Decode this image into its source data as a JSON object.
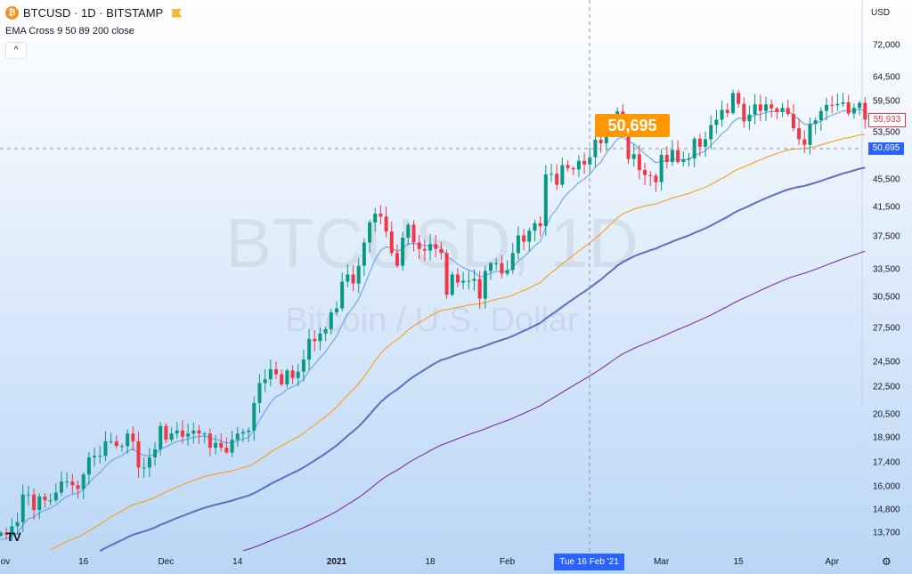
{
  "header": {
    "symbol_title": "BTCUSD · 1D · BITSTAMP",
    "indicator": "EMA Cross 9 50 89 200 close",
    "currency": "USD",
    "collapse_icon": "chevron-up-icon"
  },
  "watermark": {
    "line1": "BTCUSD, 1D",
    "line2": "Bitcoin / U.S. Dollar"
  },
  "tooltip": {
    "value": "50,695"
  },
  "price_tags": {
    "last": "55,933",
    "crosshair": "50,695"
  },
  "crosshair_date": "Tue 16 Feb '21",
  "logo_text": "TV",
  "colors": {
    "up": "#089981",
    "down": "#f23645",
    "ema9": "#5b9cf6",
    "ema50": "#ff9800",
    "ema89": "#5d6fc0",
    "ema200": "#7b1fa2",
    "accent": "#2962ff"
  },
  "chart_data": {
    "type": "candlestick",
    "title": "BTCUSD · 1D · BITSTAMP",
    "x_start": "2020-11-01",
    "y_scale": "log",
    "ylim": [
      12500,
      80000
    ],
    "y_ticks": [
      "72,000",
      "64,500",
      "59,500",
      "53,500",
      "45,500",
      "41,500",
      "37,500",
      "33,500",
      "30,500",
      "27,500",
      "24,500",
      "22,500",
      "20,500",
      "18,900",
      "17,400",
      "16,000",
      "14,800",
      "13,700"
    ],
    "y_tick_values": [
      72000,
      64500,
      59500,
      53500,
      45500,
      41500,
      37500,
      33500,
      30500,
      27500,
      24500,
      22500,
      20500,
      18900,
      17400,
      16000,
      14800,
      13700
    ],
    "x_ticks": [
      {
        "label": "ov",
        "day": 0
      },
      {
        "label": "16",
        "day": 15
      },
      {
        "label": "Dec",
        "day": 30
      },
      {
        "label": "14",
        "day": 43
      },
      {
        "label": "2021",
        "day": 61
      },
      {
        "label": "18",
        "day": 78
      },
      {
        "label": "Feb",
        "day": 92
      },
      {
        "label": "Mar",
        "day": 120
      },
      {
        "label": "15",
        "day": 134
      },
      {
        "label": "Apr",
        "day": 151
      }
    ],
    "closes_k": [
      13.7,
      13.6,
      14.0,
      14.2,
      15.6,
      15.6,
      14.8,
      15.5,
      15.3,
      15.3,
      15.7,
      16.3,
      16.3,
      16.1,
      15.9,
      16.7,
      17.7,
      17.8,
      17.8,
      18.7,
      18.7,
      18.4,
      18.4,
      19.2,
      18.7,
      17.1,
      17.1,
      17.7,
      18.2,
      19.7,
      18.8,
      19.2,
      19.4,
      19.0,
      19.2,
      19.4,
      19.2,
      19.2,
      18.3,
      18.6,
      18.3,
      18.0,
      18.8,
      19.2,
      19.3,
      19.4,
      21.3,
      22.8,
      23.1,
      23.9,
      23.5,
      22.7,
      23.8,
      23.2,
      23.7,
      24.7,
      26.5,
      26.3,
      27.0,
      27.4,
      29.0,
      29.4,
      32.2,
      33.0,
      32.0,
      34.0,
      36.8,
      39.4,
      40.6,
      40.2,
      38.2,
      35.5,
      34.0,
      37.4,
      39.1,
      36.8,
      36.0,
      35.8,
      36.6,
      36.0,
      35.5,
      30.8,
      33.0,
      32.1,
      32.3,
      32.3,
      32.5,
      30.4,
      33.4,
      34.3,
      34.3,
      33.1,
      33.5,
      35.5,
      37.7,
      36.9,
      38.3,
      39.3,
      38.9,
      46.4,
      46.5,
      44.8,
      47.9,
      47.4,
      47.2,
      48.6,
      48.0,
      49.2,
      52.2,
      51.6,
      55.9,
      55.9,
      57.5,
      54.1,
      48.9,
      49.7,
      47.1,
      46.3,
      46.2,
      45.2,
      49.6,
      48.4,
      50.4,
      48.4,
      48.8,
      49.0,
      52.4,
      51.0,
      52.3,
      54.9,
      55.9,
      57.8,
      57.2,
      61.2,
      59.0,
      55.6,
      56.9,
      58.9,
      57.6,
      58.9,
      58.1,
      57.4,
      58.2,
      57.0,
      54.3,
      52.3,
      51.3,
      55.1,
      55.8,
      57.6,
      58.8,
      58.7,
      59.0,
      59.3,
      57.1,
      58.2,
      59.2,
      55.933
    ],
    "series": [
      {
        "name": "EMA 9",
        "period": 9,
        "seed_k": 13.3
      },
      {
        "name": "EMA 50",
        "period": 50,
        "seed_k": 12.0
      },
      {
        "name": "EMA 89",
        "period": 89,
        "seed_k": 11.3
      },
      {
        "name": "EMA 200",
        "period": 200,
        "seed_k": 10.2
      }
    ]
  }
}
